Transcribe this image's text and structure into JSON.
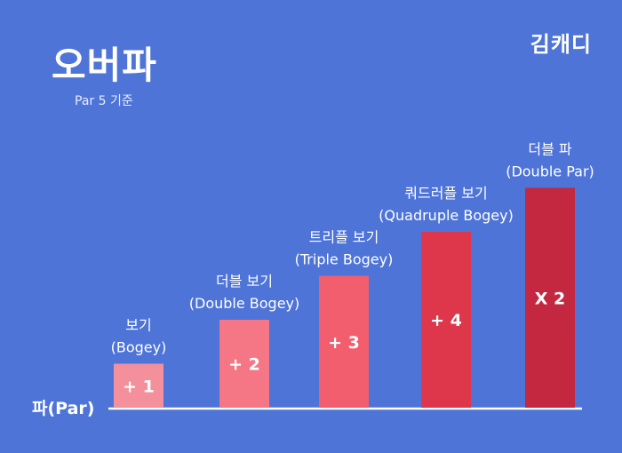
{
  "header": {
    "title": "오버파",
    "subtitle": "Par 5 기준",
    "brand": "김캐디"
  },
  "chart_data": {
    "type": "bar",
    "baseline_label": "파(Par)",
    "categories": [
      {
        "name": "보기",
        "en": "(Bogey)",
        "value_label": "+ 1",
        "value": 1,
        "color": "#f4909c"
      },
      {
        "name": "더블 보기",
        "en": "(Double Bogey)",
        "value_label": "+ 2",
        "value": 2,
        "color": "#f57685"
      },
      {
        "name": "트리플 보기",
        "en": "(Triple Bogey)",
        "value_label": "+ 3",
        "value": 3,
        "color": "#f25e6d"
      },
      {
        "name": "쿼드러플 보기",
        "en": "(Quadruple Bogey)",
        "value_label": "+ 4",
        "value": 4,
        "color": "#de374c"
      },
      {
        "name": "더블 파",
        "en": "(Double Par)",
        "value_label": "X 2",
        "value": 5,
        "color": "#c42840"
      }
    ]
  }
}
